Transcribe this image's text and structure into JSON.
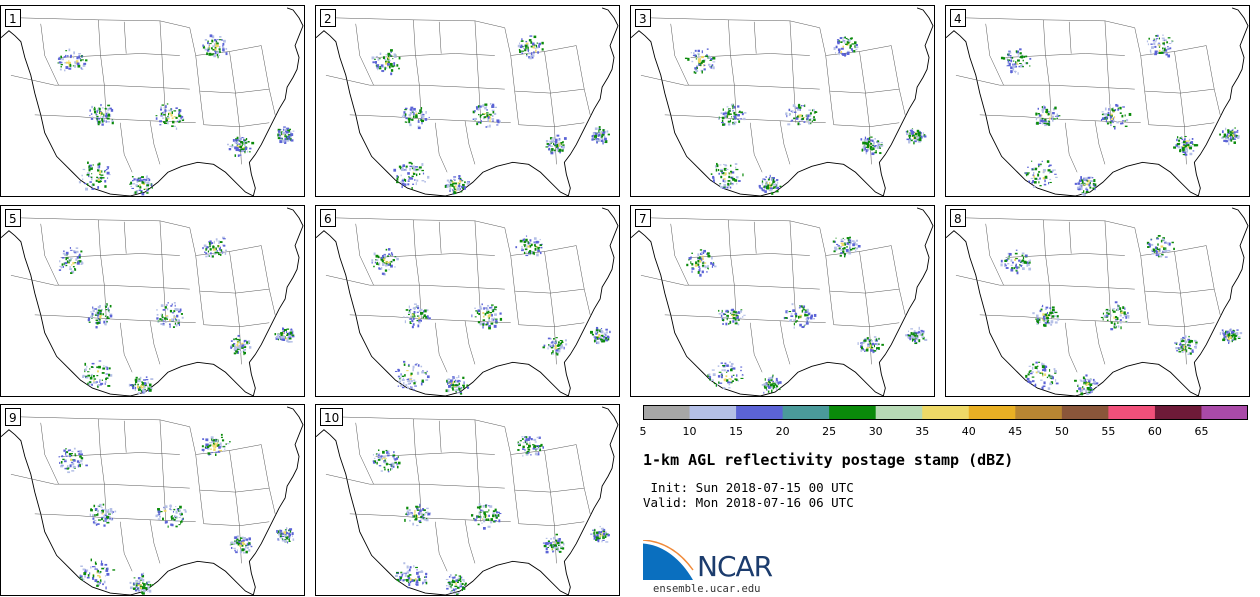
{
  "panels": [
    {
      "label": "1"
    },
    {
      "label": "2"
    },
    {
      "label": "3"
    },
    {
      "label": "4"
    },
    {
      "label": "5"
    },
    {
      "label": "6"
    },
    {
      "label": "7"
    },
    {
      "label": "8"
    },
    {
      "label": "9"
    },
    {
      "label": "10"
    }
  ],
  "colorbar": {
    "ticks": [
      "5",
      "10",
      "15",
      "20",
      "25",
      "30",
      "35",
      "40",
      "45",
      "50",
      "55",
      "60",
      "65"
    ],
    "colors": [
      "#a6a6a6",
      "#b4bfe6",
      "#5b63d6",
      "#4a9a9a",
      "#0a8a0a",
      "#b7dab5",
      "#eed967",
      "#e9b024",
      "#b88632",
      "#8a563a",
      "#f0507a",
      "#6e1a38",
      "#a94aa8"
    ]
  },
  "title": "1-km AGL reflectivity postage stamp (dBZ)",
  "init": " Init: Sun 2018-07-15 00 UTC",
  "valid": "Valid: Mon 2018-07-16 06 UTC",
  "logo": {
    "text": "NCAR",
    "site": "ensemble.ucar.edu"
  }
}
